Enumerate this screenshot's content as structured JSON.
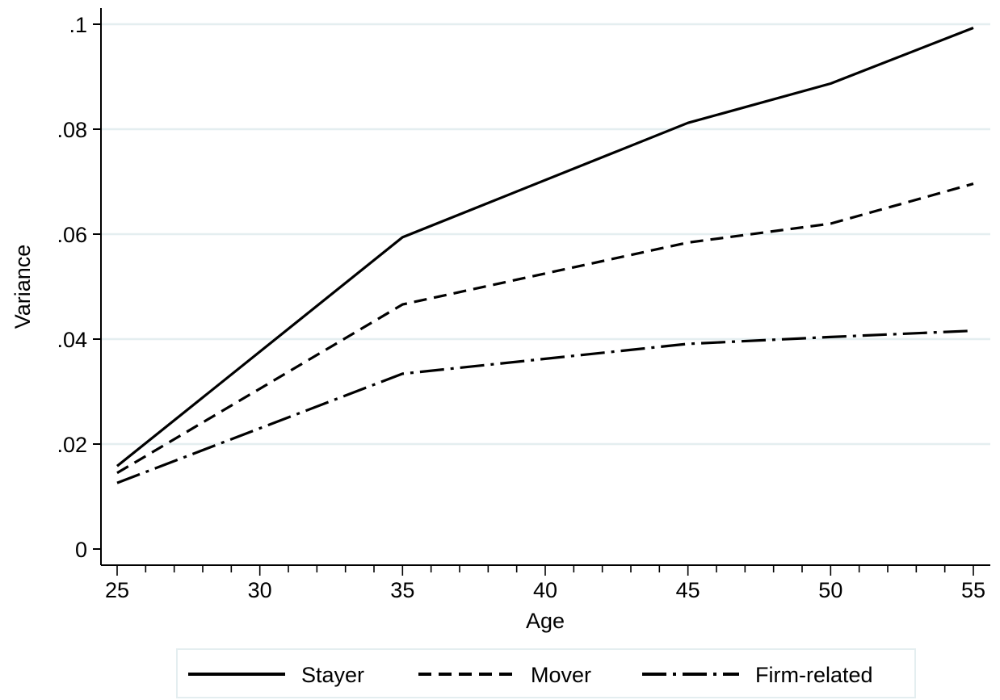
{
  "chart_data": {
    "type": "line",
    "x": [
      25,
      35,
      45,
      50,
      55
    ],
    "xlabel": "Age",
    "ylabel": "Variance",
    "xlim": [
      25,
      55
    ],
    "ylim": [
      0,
      0.1
    ],
    "x_ticks": [
      25,
      30,
      35,
      40,
      45,
      50,
      55
    ],
    "x_tick_labels": [
      "25",
      "30",
      "35",
      "40",
      "45",
      "50",
      "55"
    ],
    "x_minor_step": 1,
    "y_ticks": [
      0,
      0.02,
      0.04,
      0.06,
      0.08,
      0.1
    ],
    "y_tick_labels": [
      "0",
      ".02",
      ".04",
      ".06",
      ".08",
      ".1"
    ],
    "grid": "horizontal",
    "legend_position": "bottom",
    "series": [
      {
        "name": "Stayer",
        "values": [
          0.0158,
          0.0594,
          0.0812,
          0.0887,
          0.0993
        ],
        "style": "solid"
      },
      {
        "name": "Mover",
        "values": [
          0.0145,
          0.0466,
          0.0584,
          0.062,
          0.0696
        ],
        "style": "dashed"
      },
      {
        "name": "Firm-related",
        "values": [
          0.0126,
          0.0334,
          0.0391,
          0.0404,
          0.0416
        ],
        "style": "dashdot"
      }
    ],
    "colors": {
      "line": "#000000",
      "grid": "#e4eef0",
      "axis": "#000000",
      "legend_border": "#e4eef0"
    }
  }
}
